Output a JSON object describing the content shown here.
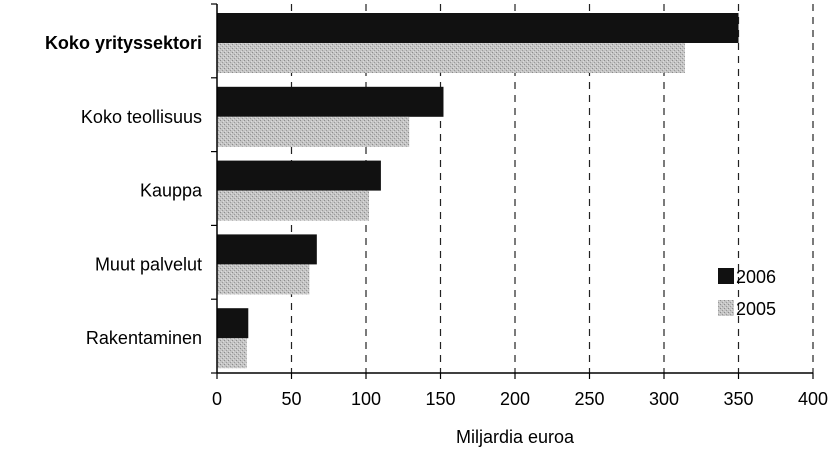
{
  "chart_data": {
    "type": "bar",
    "orientation": "horizontal",
    "categories": [
      "Koko yrityssektori",
      "Koko teollisuus",
      "Kauppa",
      "Muut palvelut",
      "Rakentaminen"
    ],
    "bold_categories": [
      "Koko yrityssektori"
    ],
    "series": [
      {
        "name": "2006",
        "values": [
          350,
          152,
          110,
          67,
          21
        ],
        "color": "#111111"
      },
      {
        "name": "2005",
        "values": [
          314,
          129,
          102,
          62,
          20
        ],
        "color": "#b8b8b8"
      }
    ],
    "xlabel": "Miljardia euroa",
    "ylabel": "",
    "xlim": [
      0,
      400
    ],
    "xticks": [
      0,
      50,
      100,
      150,
      200,
      250,
      300,
      350,
      400
    ],
    "grid": "vertical dashed",
    "legend_position": "right"
  }
}
